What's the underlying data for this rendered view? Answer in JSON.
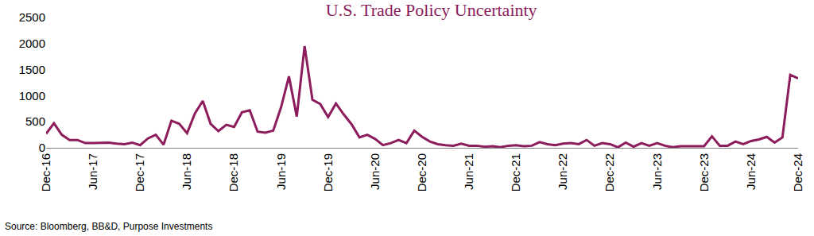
{
  "chart_data": {
    "type": "line",
    "title": "U.S. Trade Policy Uncertainty",
    "source": "Source: Bloomberg, BB&D, Purpose Investments",
    "color": "#8c1c5c",
    "categories": [
      "Dec-16",
      null,
      null,
      null,
      null,
      null,
      "Jun-17",
      null,
      null,
      null,
      null,
      null,
      "Dec-17",
      null,
      null,
      null,
      null,
      null,
      "Jun-18",
      null,
      null,
      null,
      null,
      null,
      "Dec-18",
      null,
      null,
      null,
      null,
      null,
      "Jun-19",
      null,
      null,
      null,
      null,
      null,
      "Dec-19",
      null,
      null,
      null,
      null,
      null,
      "Jun-20",
      null,
      null,
      null,
      null,
      null,
      "Dec-20",
      null,
      null,
      null,
      null,
      null,
      "Jun-21",
      null,
      null,
      null,
      null,
      null,
      "Dec-21",
      null,
      null,
      null,
      null,
      null,
      "Jun-22",
      null,
      null,
      null,
      null,
      null,
      "Dec-22",
      null,
      null,
      null,
      null,
      null,
      "Jun-23",
      null,
      null,
      null,
      null,
      null,
      "Dec-23",
      null,
      null,
      null,
      null,
      null,
      "Jun-24",
      null,
      null,
      null,
      null,
      null,
      "Dec-24"
    ],
    "values": [
      270,
      470,
      250,
      150,
      150,
      90,
      90,
      100,
      100,
      80,
      70,
      100,
      50,
      180,
      250,
      60,
      520,
      460,
      280,
      660,
      900,
      460,
      320,
      440,
      400,
      680,
      720,
      310,
      290,
      330,
      780,
      1370,
      600,
      1950,
      920,
      840,
      590,
      850,
      640,
      450,
      200,
      250,
      170,
      50,
      90,
      150,
      90,
      330,
      210,
      120,
      70,
      50,
      40,
      80,
      40,
      40,
      20,
      30,
      10,
      40,
      50,
      30,
      40,
      110,
      70,
      50,
      80,
      90,
      70,
      150,
      40,
      90,
      70,
      10,
      100,
      20,
      90,
      40,
      90,
      40,
      10,
      30,
      30,
      30,
      30,
      220,
      40,
      40,
      120,
      70,
      130,
      160,
      210,
      100,
      200,
      1400,
      1330
    ],
    "ylim": [
      0,
      2500
    ],
    "yticks": [
      0,
      500,
      1000,
      1500,
      2000,
      2500
    ],
    "grid": false
  }
}
